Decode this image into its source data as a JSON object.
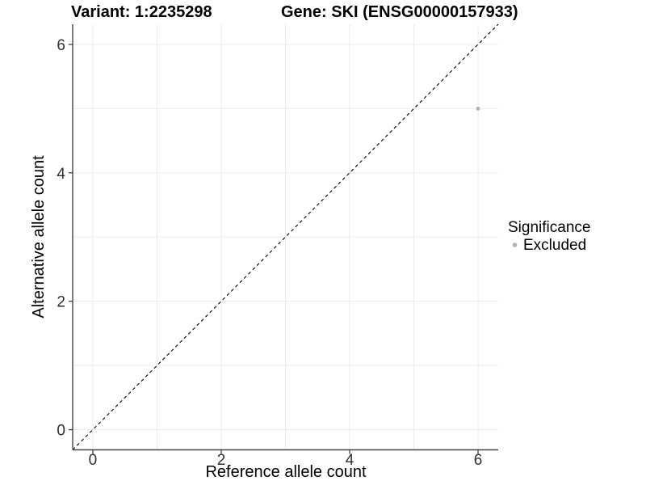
{
  "header": {
    "variant_title": "Variant: 1:2235298",
    "gene_title": "Gene: SKI (ENSG00000157933)"
  },
  "chart_data": {
    "type": "scatter",
    "title_left": "Variant: 1:2235298",
    "title_right": "Gene: SKI (ENSG00000157933)",
    "xlabel": "Reference allele count",
    "ylabel": "Alternative allele count",
    "xlim": [
      -0.314,
      6.314
    ],
    "ylim": [
      -0.314,
      6.314
    ],
    "x_ticks": [
      0,
      2,
      4,
      6
    ],
    "y_ticks": [
      0,
      2,
      4,
      6
    ],
    "grid": {
      "show": true,
      "every": 1,
      "color": "#ebebeb"
    },
    "axis_line_color": "#464646",
    "tick_mark_color": "#333333",
    "points": [
      {
        "x": 6,
        "y": 5,
        "series": "Excluded",
        "color": "#b3b3b3",
        "radius": 2.4
      }
    ],
    "reference_line": {
      "type": "identity",
      "style": "dashed",
      "color": "#000000",
      "x1": -0.314,
      "y1": -0.314,
      "x2": 6.314,
      "y2": 6.314
    },
    "legend": {
      "title": "Significance",
      "position": "right",
      "items": [
        {
          "label": "Excluded",
          "color": "#b3b3b3",
          "marker": "dot"
        }
      ]
    }
  }
}
